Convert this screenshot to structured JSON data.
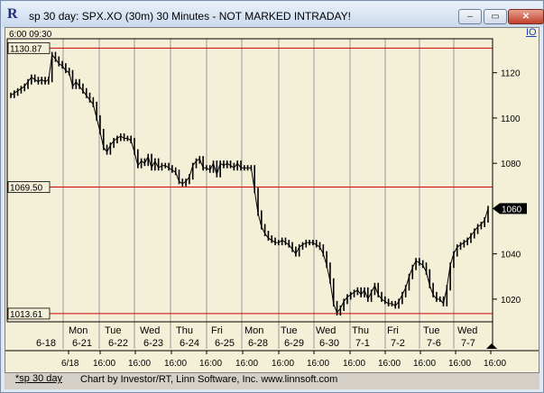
{
  "window": {
    "title": "sp 30 day: SPX.XO (30m) 30 Minutes - NOT MARKED INTRADAY!",
    "minimize": "–",
    "maximize": "▭",
    "close": "✕"
  },
  "io_label": "IO",
  "header_readout": "6:00  09:30",
  "footer": {
    "tab_label": "*sp 30 day",
    "credit": "Chart by Investor/RT, Linn Software, Inc. www.linnsoft.com"
  },
  "colors": {
    "background": "#f4f0d8",
    "level_line": "#cc0000",
    "candles": "#000000",
    "grid": "#999999"
  },
  "chart_data": {
    "type": "line",
    "symbol": "SPX.XO",
    "interval": "30 Minutes",
    "ylim": [
      1010,
      1135
    ],
    "y_ticks": [
      1020,
      1040,
      1060,
      1080,
      1100,
      1120
    ],
    "last_price": "1060",
    "levels": [
      {
        "label": "1130.87",
        "value": 1130.87
      },
      {
        "label": "1069.50",
        "value": 1069.5
      },
      {
        "label": "1013.61",
        "value": 1013.61
      }
    ],
    "days": [
      {
        "dow": "",
        "date": "6-18"
      },
      {
        "dow": "Mon",
        "date": "6-21"
      },
      {
        "dow": "Tue",
        "date": "6-22"
      },
      {
        "dow": "Wed",
        "date": "6-23"
      },
      {
        "dow": "Thu",
        "date": "6-24"
      },
      {
        "dow": "Fri",
        "date": "6-25"
      },
      {
        "dow": "Mon",
        "date": "6-28"
      },
      {
        "dow": "Tue",
        "date": "6-29"
      },
      {
        "dow": "Wed",
        "date": "6-30"
      },
      {
        "dow": "Thu",
        "date": "7-1"
      },
      {
        "dow": "Fri",
        "date": "7-2"
      },
      {
        "dow": "Tue",
        "date": "7-6"
      },
      {
        "dow": "Wed",
        "date": "7-7"
      }
    ],
    "time_axis_labels": [
      "6/18",
      "16:00",
      "16:00",
      "16:00",
      "16:00",
      "16:00",
      "16:00",
      "16:00",
      "16:00",
      "16:00",
      "16:00",
      "16:00",
      "16:00"
    ],
    "series": [
      {
        "values": [
          1110,
          1111,
          1112,
          1113,
          1114,
          1116,
          1118,
          1117,
          1116,
          1117,
          1116,
          1117,
          1128,
          1126,
          1124,
          1123,
          1121,
          1120,
          1114,
          1116,
          1114,
          1112,
          1110,
          1108,
          1106,
          1100,
          1094,
          1087,
          1085,
          1088,
          1090,
          1091,
          1092,
          1091,
          1091,
          1090,
          1085,
          1079,
          1081,
          1080,
          1083,
          1078,
          1081,
          1078,
          1079,
          1079,
          1078,
          1077,
          1076,
          1072,
          1071,
          1072,
          1074,
          1079,
          1081,
          1082,
          1078,
          1078,
          1077,
          1080,
          1075,
          1080,
          1079,
          1080,
          1079,
          1078,
          1080,
          1078,
          1078,
          1078,
          1078,
          1068,
          1058,
          1052,
          1049,
          1047,
          1046,
          1045,
          1045,
          1046,
          1045,
          1044,
          1042,
          1040,
          1043,
          1044,
          1045,
          1045,
          1045,
          1044,
          1043,
          1040,
          1035,
          1028,
          1018,
          1014,
          1016,
          1019,
          1021,
          1022,
          1023,
          1024,
          1022,
          1024,
          1020,
          1023,
          1026,
          1022,
          1020,
          1019,
          1018,
          1018,
          1017,
          1019,
          1022,
          1025,
          1030,
          1034,
          1037,
          1036,
          1035,
          1032,
          1026,
          1022,
          1020,
          1020,
          1018,
          1025,
          1035,
          1040,
          1043,
          1044,
          1045,
          1046,
          1048,
          1050,
          1052,
          1053,
          1055,
          1060
        ]
      }
    ]
  }
}
